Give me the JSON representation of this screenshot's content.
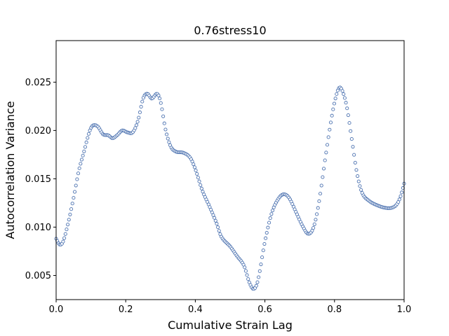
{
  "chart_data": {
    "type": "scatter",
    "title": "0.76stress10",
    "xlabel": "Cumulative Strain Lag",
    "ylabel": "Autocorrelation Variance",
    "xlim": [
      0,
      1.0
    ],
    "ylim": [
      0.0025,
      0.0293
    ],
    "x_ticks": [
      0.0,
      0.2,
      0.4,
      0.6,
      0.8,
      1.0
    ],
    "x_tick_labels": [
      "0.0",
      "0.2",
      "0.4",
      "0.6",
      "0.8",
      "1.0"
    ],
    "y_ticks": [
      0.005,
      0.01,
      0.015,
      0.02,
      0.025
    ],
    "y_tick_labels": [
      "0.005",
      "0.010",
      "0.015",
      "0.020",
      "0.025"
    ],
    "grid": false,
    "legend": "none",
    "marker": "hollow-circle",
    "marker_color": "#4c72b0",
    "point_count": 300,
    "x_start": 0.0,
    "x_end": 1.0,
    "curve_keypoints": [
      [
        0.0,
        0.0088
      ],
      [
        0.01,
        0.0082
      ],
      [
        0.02,
        0.0085
      ],
      [
        0.035,
        0.0105
      ],
      [
        0.05,
        0.013
      ],
      [
        0.065,
        0.0158
      ],
      [
        0.08,
        0.0178
      ],
      [
        0.095,
        0.0198
      ],
      [
        0.105,
        0.0205
      ],
      [
        0.12,
        0.0204
      ],
      [
        0.135,
        0.0196
      ],
      [
        0.15,
        0.0195
      ],
      [
        0.162,
        0.0192
      ],
      [
        0.175,
        0.0195
      ],
      [
        0.19,
        0.02
      ],
      [
        0.205,
        0.0198
      ],
      [
        0.22,
        0.0198
      ],
      [
        0.235,
        0.021
      ],
      [
        0.25,
        0.0233
      ],
      [
        0.262,
        0.0238
      ],
      [
        0.275,
        0.0233
      ],
      [
        0.29,
        0.0238
      ],
      [
        0.3,
        0.023
      ],
      [
        0.315,
        0.02
      ],
      [
        0.33,
        0.0183
      ],
      [
        0.345,
        0.0178
      ],
      [
        0.365,
        0.0177
      ],
      [
        0.385,
        0.0172
      ],
      [
        0.4,
        0.016
      ],
      [
        0.42,
        0.0138
      ],
      [
        0.44,
        0.0122
      ],
      [
        0.46,
        0.0105
      ],
      [
        0.475,
        0.009
      ],
      [
        0.5,
        0.008
      ],
      [
        0.52,
        0.007
      ],
      [
        0.54,
        0.006
      ],
      [
        0.555,
        0.0043
      ],
      [
        0.568,
        0.0036
      ],
      [
        0.58,
        0.0045
      ],
      [
        0.6,
        0.0085
      ],
      [
        0.62,
        0.0115
      ],
      [
        0.64,
        0.013
      ],
      [
        0.655,
        0.0134
      ],
      [
        0.67,
        0.013
      ],
      [
        0.69,
        0.0115
      ],
      [
        0.71,
        0.01
      ],
      [
        0.725,
        0.0093
      ],
      [
        0.74,
        0.01
      ],
      [
        0.755,
        0.0125
      ],
      [
        0.775,
        0.0175
      ],
      [
        0.795,
        0.022
      ],
      [
        0.81,
        0.0242
      ],
      [
        0.82,
        0.0243
      ],
      [
        0.835,
        0.0225
      ],
      [
        0.85,
        0.019
      ],
      [
        0.865,
        0.0155
      ],
      [
        0.88,
        0.0135
      ],
      [
        0.9,
        0.0127
      ],
      [
        0.92,
        0.0123
      ],
      [
        0.945,
        0.012
      ],
      [
        0.965,
        0.012
      ],
      [
        0.98,
        0.0124
      ],
      [
        0.99,
        0.0132
      ],
      [
        1.0,
        0.0145
      ]
    ]
  }
}
